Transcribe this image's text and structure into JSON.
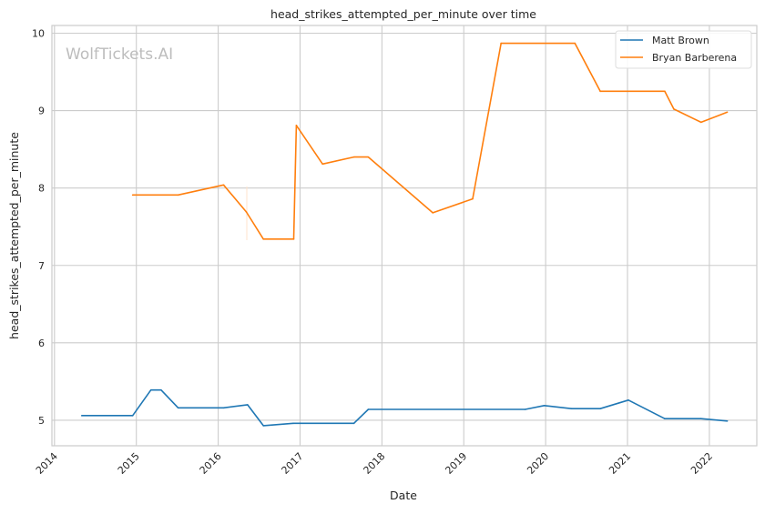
{
  "chart_data": {
    "type": "line",
    "title": "head_strikes_attempted_per_minute over time",
    "xlabel": "Date",
    "ylabel": "head_strikes_attempted_per_minute",
    "xlim": [
      "2013-12-20",
      "2022-07-30"
    ],
    "ylim": [
      4.67,
      10.1
    ],
    "x_ticks": [
      "2014",
      "2015",
      "2016",
      "2017",
      "2018",
      "2019",
      "2020",
      "2021",
      "2022"
    ],
    "y_ticks": [
      "5",
      "6",
      "7",
      "8",
      "9",
      "10"
    ],
    "grid": true,
    "legend_position": "top-right",
    "watermark": "WolfTickets.AI",
    "series": [
      {
        "name": "Matt Brown",
        "color": "#1f77b4",
        "points": [
          [
            "2014-05-01",
            5.06
          ],
          [
            "2014-12-15",
            5.06
          ],
          [
            "2015-03-05",
            5.39
          ],
          [
            "2015-04-20",
            5.39
          ],
          [
            "2015-07-05",
            5.16
          ],
          [
            "2016-01-25",
            5.16
          ],
          [
            "2016-05-10",
            5.2
          ],
          [
            "2016-07-20",
            4.93
          ],
          [
            "2016-12-01",
            4.96
          ],
          [
            "2017-08-28",
            4.96
          ],
          [
            "2017-11-01",
            5.14
          ],
          [
            "2019-10-01",
            5.14
          ],
          [
            "2019-12-25",
            5.19
          ],
          [
            "2020-04-25",
            5.15
          ],
          [
            "2020-09-01",
            5.15
          ],
          [
            "2021-01-05",
            5.26
          ],
          [
            "2021-06-15",
            5.02
          ],
          [
            "2021-11-25",
            5.02
          ],
          [
            "2022-03-20",
            4.99
          ]
        ]
      },
      {
        "name": "Bryan Barberena",
        "color": "#ff7f0e",
        "points": [
          [
            "2014-12-15",
            7.91
          ],
          [
            "2015-07-05",
            7.91
          ],
          [
            "2016-01-25",
            8.04
          ],
          [
            "2016-05-05",
            7.69
          ],
          [
            "2016-07-20",
            7.34
          ],
          [
            "2016-12-03",
            7.34
          ],
          [
            "2016-12-15",
            8.81
          ],
          [
            "2017-04-10",
            8.31
          ],
          [
            "2017-08-28",
            8.4
          ],
          [
            "2017-11-01",
            8.4
          ],
          [
            "2018-08-15",
            7.68
          ],
          [
            "2019-02-10",
            7.86
          ],
          [
            "2019-06-15",
            9.87
          ],
          [
            "2020-05-10",
            9.87
          ],
          [
            "2020-09-01",
            9.25
          ],
          [
            "2021-06-15",
            9.25
          ],
          [
            "2021-07-25",
            9.02
          ],
          [
            "2021-11-25",
            8.85
          ],
          [
            "2022-03-20",
            8.98
          ]
        ]
      }
    ]
  }
}
